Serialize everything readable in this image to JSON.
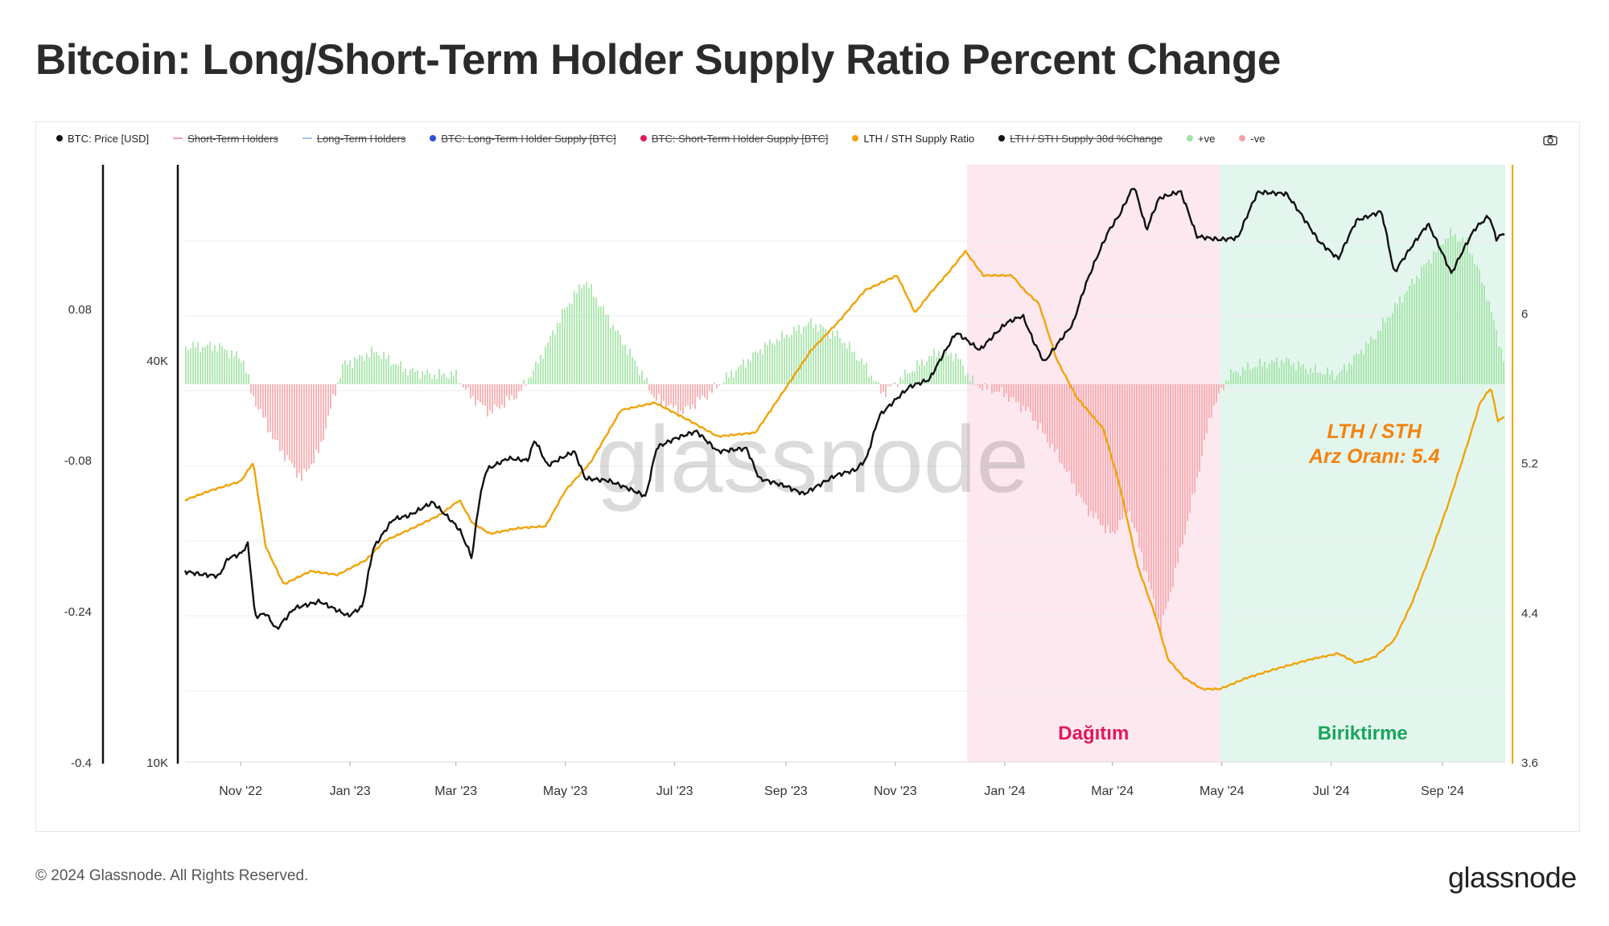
{
  "page": {
    "title": "Bitcoin: Long/Short-Term Holder Supply Ratio Percent Change",
    "copyright": "© 2024 Glassnode. All Rights Reserved.",
    "brand": "glassnode",
    "watermark": "glassnode"
  },
  "legend": [
    {
      "label": "BTC: Price [USD]",
      "color": "#111111",
      "kind": "dot",
      "active": true
    },
    {
      "label": "Short-Term Holders",
      "color": "#f3a3a8",
      "kind": "line",
      "active": false
    },
    {
      "label": "Long-Term Holders",
      "color": "#a9c4ee",
      "kind": "line",
      "active": false
    },
    {
      "label": "BTC: Long-Term Holder Supply [BTC]",
      "color": "#2d4fd6",
      "kind": "dot",
      "active": false
    },
    {
      "label": "BTC: Short-Term Holder Supply [BTC]",
      "color": "#e0185c",
      "kind": "dot",
      "active": false
    },
    {
      "label": "LTH / STH Supply Ratio",
      "color": "#f0a30a",
      "kind": "dot",
      "active": true
    },
    {
      "label": "LTH / STH Supply 30d %Change",
      "color": "#111111",
      "kind": "dot",
      "active": false
    },
    {
      "label": "+ve",
      "color": "#9fe3a2",
      "kind": "dot",
      "active": true
    },
    {
      "label": "-ve",
      "color": "#f5a3a7",
      "kind": "dot",
      "active": true
    }
  ],
  "chart_data": {
    "type": "line",
    "x_tick_labels": [
      "Nov '22",
      "Jan '23",
      "Mar '23",
      "May '23",
      "Jul '23",
      "Sep '23",
      "Nov '23",
      "Jan '24",
      "Mar '24",
      "May '24",
      "Jul '24",
      "Sep '24"
    ],
    "x_range": [
      "2022-10-01",
      "2024-10-06"
    ],
    "y_axes": {
      "pct_change": {
        "ticks": [
          "0.08",
          "-0.08",
          "-0.24",
          "-0.4"
        ],
        "range": [
          -0.4,
          0.08
        ]
      },
      "price_usd": {
        "ticks": [
          "40K",
          "10K"
        ],
        "scale": "log"
      },
      "ratio": {
        "ticks": [
          "6",
          "5.2",
          "4.4",
          "3.6"
        ],
        "range": [
          3.6,
          6.8
        ]
      }
    },
    "regions": [
      {
        "label": "Dağıtım",
        "start": "2023-12-11",
        "end": "2024-04-30",
        "color": "#fde8ef",
        "label_color": "#e0185c"
      },
      {
        "label": "Biriktirme",
        "start": "2024-04-30",
        "end": "2024-10-06",
        "color": "#e3f6ee",
        "label_color": "#1aa55b"
      }
    ],
    "annotation": {
      "lines": [
        "LTH / STH",
        "Arz Oranı: 5.4"
      ],
      "color": "#f5820d",
      "date": "2024-07-25",
      "value": 5.4
    },
    "series": [
      {
        "name": "BTC: Price [USD]",
        "axis": "price_usd",
        "color": "#111111",
        "points": [
          [
            "2022-10-01",
            19300
          ],
          [
            "2022-10-10",
            19100
          ],
          [
            "2022-10-20",
            19000
          ],
          [
            "2022-10-25",
            20200
          ],
          [
            "2022-11-01",
            20500
          ],
          [
            "2022-11-05",
            21200
          ],
          [
            "2022-11-09",
            16500
          ],
          [
            "2022-11-15",
            16700
          ],
          [
            "2022-11-21",
            15800
          ],
          [
            "2022-12-01",
            17000
          ],
          [
            "2022-12-15",
            17400
          ],
          [
            "2022-12-31",
            16550
          ],
          [
            "2023-01-08",
            17100
          ],
          [
            "2023-01-14",
            20900
          ],
          [
            "2023-01-25",
            23100
          ],
          [
            "2023-02-03",
            23400
          ],
          [
            "2023-02-16",
            24500
          ],
          [
            "2023-02-25",
            23200
          ],
          [
            "2023-03-03",
            22300
          ],
          [
            "2023-03-10",
            20200
          ],
          [
            "2023-03-14",
            24600
          ],
          [
            "2023-03-18",
            27400
          ],
          [
            "2023-03-30",
            28500
          ],
          [
            "2023-04-10",
            28300
          ],
          [
            "2023-04-14",
            30400
          ],
          [
            "2023-04-21",
            27800
          ],
          [
            "2023-05-06",
            29200
          ],
          [
            "2023-05-12",
            26600
          ],
          [
            "2023-05-25",
            26400
          ],
          [
            "2023-06-05",
            25700
          ],
          [
            "2023-06-15",
            25000
          ],
          [
            "2023-06-21",
            29600
          ],
          [
            "2023-07-01",
            30500
          ],
          [
            "2023-07-13",
            31300
          ],
          [
            "2023-07-25",
            29200
          ],
          [
            "2023-08-10",
            29500
          ],
          [
            "2023-08-17",
            26600
          ],
          [
            "2023-09-01",
            25900
          ],
          [
            "2023-09-11",
            25200
          ],
          [
            "2023-09-29",
            26900
          ],
          [
            "2023-10-10",
            27400
          ],
          [
            "2023-10-16",
            28500
          ],
          [
            "2023-10-23",
            33000
          ],
          [
            "2023-11-09",
            36500
          ],
          [
            "2023-11-20",
            37400
          ],
          [
            "2023-12-05",
            44000
          ],
          [
            "2023-12-18",
            41400
          ],
          [
            "2024-01-02",
            45500
          ],
          [
            "2024-01-11",
            46600
          ],
          [
            "2024-01-17",
            42700
          ],
          [
            "2024-01-23",
            39700
          ],
          [
            "2024-02-08",
            45300
          ],
          [
            "2024-02-15",
            51800
          ],
          [
            "2024-02-28",
            62500
          ],
          [
            "2024-03-05",
            66000
          ],
          [
            "2024-03-13",
            73000
          ],
          [
            "2024-03-20",
            62600
          ],
          [
            "2024-03-27",
            69900
          ],
          [
            "2024-04-08",
            71600
          ],
          [
            "2024-04-17",
            61300
          ],
          [
            "2024-04-30",
            60600
          ],
          [
            "2024-05-10",
            61000
          ],
          [
            "2024-05-21",
            71400
          ],
          [
            "2024-06-06",
            71000
          ],
          [
            "2024-06-24",
            60300
          ],
          [
            "2024-07-05",
            56700
          ],
          [
            "2024-07-15",
            64700
          ],
          [
            "2024-07-29",
            66800
          ],
          [
            "2024-08-05",
            54000
          ],
          [
            "2024-08-24",
            64000
          ],
          [
            "2024-09-06",
            53900
          ],
          [
            "2024-09-19",
            62900
          ],
          [
            "2024-09-27",
            65800
          ],
          [
            "2024-10-01",
            60800
          ],
          [
            "2024-10-06",
            62100
          ]
        ]
      },
      {
        "name": "LTH / STH Supply Ratio",
        "axis": "ratio",
        "color": "#f0a30a",
        "points": [
          [
            "2022-10-01",
            5.0
          ],
          [
            "2022-10-15",
            5.05
          ],
          [
            "2022-11-01",
            5.1
          ],
          [
            "2022-11-08",
            5.2
          ],
          [
            "2022-11-15",
            4.75
          ],
          [
            "2022-11-25",
            4.55
          ],
          [
            "2022-12-10",
            4.62
          ],
          [
            "2022-12-25",
            4.6
          ],
          [
            "2023-01-10",
            4.68
          ],
          [
            "2023-01-20",
            4.78
          ],
          [
            "2023-02-05",
            4.85
          ],
          [
            "2023-02-20",
            4.92
          ],
          [
            "2023-03-03",
            5.0
          ],
          [
            "2023-03-10",
            4.88
          ],
          [
            "2023-03-20",
            4.82
          ],
          [
            "2023-04-05",
            4.85
          ],
          [
            "2023-04-20",
            4.86
          ],
          [
            "2023-05-01",
            5.05
          ],
          [
            "2023-05-15",
            5.2
          ],
          [
            "2023-06-01",
            5.48
          ],
          [
            "2023-06-20",
            5.52
          ],
          [
            "2023-07-10",
            5.42
          ],
          [
            "2023-07-25",
            5.34
          ],
          [
            "2023-08-15",
            5.36
          ],
          [
            "2023-09-01",
            5.6
          ],
          [
            "2023-09-15",
            5.8
          ],
          [
            "2023-10-01",
            5.96
          ],
          [
            "2023-10-15",
            6.12
          ],
          [
            "2023-11-02",
            6.2
          ],
          [
            "2023-11-12",
            6.0
          ],
          [
            "2023-11-20",
            6.1
          ],
          [
            "2023-12-01",
            6.22
          ],
          [
            "2023-12-10",
            6.33
          ],
          [
            "2023-12-20",
            6.2
          ],
          [
            "2024-01-05",
            6.2
          ],
          [
            "2024-01-12",
            6.12
          ],
          [
            "2024-01-20",
            6.05
          ],
          [
            "2024-01-30",
            5.75
          ],
          [
            "2024-02-10",
            5.55
          ],
          [
            "2024-02-25",
            5.38
          ],
          [
            "2024-03-05",
            5.08
          ],
          [
            "2024-03-15",
            4.65
          ],
          [
            "2024-03-25",
            4.38
          ],
          [
            "2024-04-01",
            4.15
          ],
          [
            "2024-04-10",
            4.05
          ],
          [
            "2024-04-20",
            3.99
          ],
          [
            "2024-04-30",
            3.99
          ],
          [
            "2024-05-15",
            4.05
          ],
          [
            "2024-06-01",
            4.1
          ],
          [
            "2024-06-20",
            4.15
          ],
          [
            "2024-07-05",
            4.18
          ],
          [
            "2024-07-15",
            4.13
          ],
          [
            "2024-07-25",
            4.16
          ],
          [
            "2024-08-05",
            4.25
          ],
          [
            "2024-08-15",
            4.45
          ],
          [
            "2024-08-25",
            4.7
          ],
          [
            "2024-09-05",
            5.0
          ],
          [
            "2024-09-15",
            5.3
          ],
          [
            "2024-09-22",
            5.52
          ],
          [
            "2024-09-28",
            5.6
          ],
          [
            "2024-10-02",
            5.42
          ],
          [
            "2024-10-06",
            5.45
          ]
        ]
      },
      {
        "name": "LTH / STH Supply 30d %Change",
        "axis": "pct_change",
        "color": "#9fe3a2",
        "negative_color": "#f5a3a7",
        "points": [
          [
            "2022-10-01",
            0.04
          ],
          [
            "2022-10-20",
            0.04
          ],
          [
            "2022-11-03",
            0.025
          ],
          [
            "2022-11-07",
            -0.01
          ],
          [
            "2022-11-20",
            -0.06
          ],
          [
            "2022-12-05",
            -0.1
          ],
          [
            "2022-12-15",
            -0.07
          ],
          [
            "2022-12-22",
            -0.02
          ],
          [
            "2022-12-28",
            0.02
          ],
          [
            "2023-01-15",
            0.035
          ],
          [
            "2023-02-01",
            0.015
          ],
          [
            "2023-02-15",
            0.01
          ],
          [
            "2023-03-01",
            0.01
          ],
          [
            "2023-03-08",
            -0.01
          ],
          [
            "2023-03-20",
            -0.03
          ],
          [
            "2023-04-05",
            -0.01
          ],
          [
            "2023-04-15",
            0.02
          ],
          [
            "2023-05-01",
            0.08
          ],
          [
            "2023-05-12",
            0.11
          ],
          [
            "2023-05-25",
            0.07
          ],
          [
            "2023-06-10",
            0.02
          ],
          [
            "2023-06-20",
            -0.015
          ],
          [
            "2023-07-05",
            -0.03
          ],
          [
            "2023-07-20",
            -0.01
          ],
          [
            "2023-08-01",
            0.01
          ],
          [
            "2023-08-20",
            0.04
          ],
          [
            "2023-09-15",
            0.065
          ],
          [
            "2023-10-01",
            0.05
          ],
          [
            "2023-10-15",
            0.02
          ],
          [
            "2023-10-25",
            -0.01
          ],
          [
            "2023-11-10",
            0.015
          ],
          [
            "2023-11-25",
            0.035
          ],
          [
            "2023-12-05",
            0.03
          ],
          [
            "2023-12-15",
            0.0
          ],
          [
            "2024-01-01",
            -0.01
          ],
          [
            "2024-01-15",
            -0.03
          ],
          [
            "2024-02-01",
            -0.08
          ],
          [
            "2024-02-15",
            -0.13
          ],
          [
            "2024-03-01",
            -0.16
          ],
          [
            "2024-03-10",
            -0.13
          ],
          [
            "2024-03-20",
            -0.2
          ],
          [
            "2024-03-28",
            -0.26
          ],
          [
            "2024-04-05",
            -0.2
          ],
          [
            "2024-04-15",
            -0.12
          ],
          [
            "2024-04-25",
            -0.03
          ],
          [
            "2024-05-05",
            0.01
          ],
          [
            "2024-05-20",
            0.02
          ],
          [
            "2024-06-05",
            0.025
          ],
          [
            "2024-06-20",
            0.015
          ],
          [
            "2024-07-05",
            0.01
          ],
          [
            "2024-07-15",
            0.03
          ],
          [
            "2024-07-25",
            0.05
          ],
          [
            "2024-08-05",
            0.08
          ],
          [
            "2024-08-20",
            0.12
          ],
          [
            "2024-09-05",
            0.16
          ],
          [
            "2024-09-15",
            0.15
          ],
          [
            "2024-09-25",
            0.1
          ],
          [
            "2024-10-06",
            0.02
          ]
        ]
      }
    ]
  }
}
